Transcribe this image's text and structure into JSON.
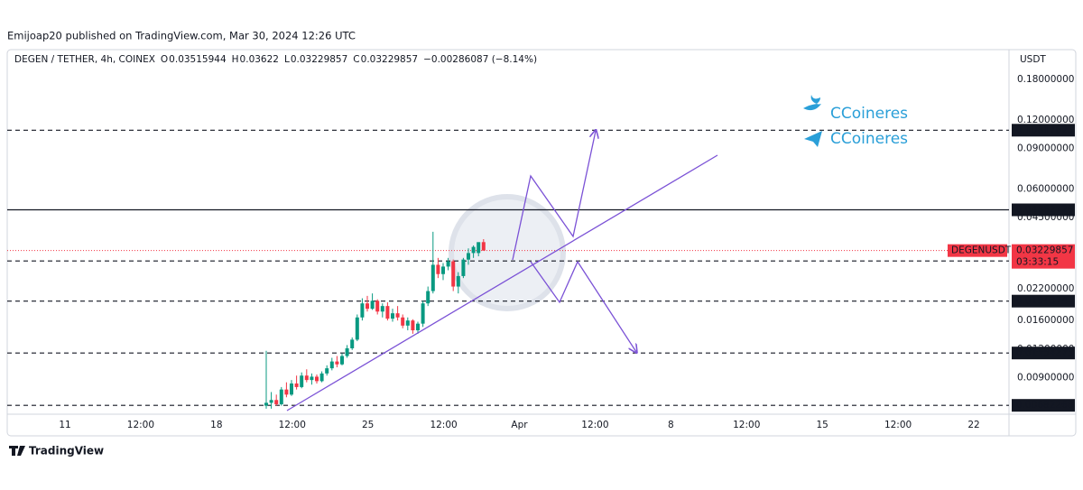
{
  "header": "Emijoap20 published on TradingView.com, Mar 30, 2024 12:26 UTC",
  "footer": "TradingView",
  "watermarks": [
    "CCoineres",
    "CCoineres"
  ],
  "chart_data": {
    "type": "candlestick",
    "title": "DEGEN / TETHER, 4h, COINEX",
    "ohlc_legend": [
      {
        "label": "O",
        "value": 0.03515944
      },
      {
        "label": "H",
        "value": 0.03622
      },
      {
        "label": "L",
        "value": 0.03229857
      },
      {
        "label": "C",
        "value": 0.03229857
      }
    ],
    "change": "−0.00286087 (−8.14%)",
    "currency": "USDT",
    "up_color": "#089981",
    "down_color": "#f23645",
    "log_scale": true,
    "open": [
      0.0068,
      0.007,
      0.0072,
      0.0069,
      0.008,
      0.0076,
      0.0085,
      0.0082,
      0.0092,
      0.0088,
      0.0091,
      0.0087,
      0.0094,
      0.0099,
      0.0106,
      0.0103,
      0.0112,
      0.0121,
      0.0132,
      0.0165,
      0.019,
      0.018,
      0.0195,
      0.0175,
      0.0185,
      0.0163,
      0.0172,
      0.0165,
      0.0152,
      0.016,
      0.0145,
      0.0155,
      0.019,
      0.0215,
      0.028,
      0.0255,
      0.0275,
      0.029,
      0.0225,
      0.025,
      0.0295,
      0.0315,
      0.0315,
      0.03515944
    ],
    "high": [
      0.0118,
      0.0078,
      0.0076,
      0.0082,
      0.0086,
      0.0088,
      0.0092,
      0.0095,
      0.0098,
      0.0094,
      0.0093,
      0.0096,
      0.0102,
      0.011,
      0.0112,
      0.0115,
      0.0125,
      0.0135,
      0.017,
      0.02,
      0.0205,
      0.021,
      0.0198,
      0.019,
      0.0192,
      0.018,
      0.0185,
      0.017,
      0.0165,
      0.0162,
      0.0158,
      0.0195,
      0.0225,
      0.039,
      0.03,
      0.0285,
      0.03,
      0.0295,
      0.026,
      0.03,
      0.033,
      0.034,
      0.0345,
      0.03622
    ],
    "low": [
      0.0066,
      0.0066,
      0.0068,
      0.0068,
      0.0074,
      0.0075,
      0.008,
      0.0081,
      0.0086,
      0.0084,
      0.0085,
      0.0086,
      0.0092,
      0.0097,
      0.01,
      0.0102,
      0.011,
      0.0119,
      0.013,
      0.016,
      0.0175,
      0.0178,
      0.017,
      0.0165,
      0.016,
      0.0158,
      0.016,
      0.0148,
      0.0145,
      0.014,
      0.014,
      0.015,
      0.0185,
      0.021,
      0.0245,
      0.024,
      0.0265,
      0.0215,
      0.021,
      0.0245,
      0.028,
      0.03,
      0.0305,
      0.03229857
    ],
    "close": [
      0.007,
      0.0072,
      0.0069,
      0.008,
      0.0076,
      0.0085,
      0.0082,
      0.0092,
      0.0088,
      0.0091,
      0.0087,
      0.0094,
      0.0099,
      0.0106,
      0.0103,
      0.0112,
      0.0121,
      0.0132,
      0.0165,
      0.019,
      0.018,
      0.0195,
      0.0175,
      0.0185,
      0.0163,
      0.0172,
      0.0165,
      0.0152,
      0.016,
      0.0145,
      0.0155,
      0.019,
      0.0215,
      0.028,
      0.0255,
      0.0275,
      0.029,
      0.0225,
      0.025,
      0.0295,
      0.0315,
      0.0335,
      0.03515944,
      0.03229857
    ],
    "ylim": [
      0.0063,
      0.243
    ],
    "yticks": [
      {
        "value": 0.18,
        "label": "0.18000000"
      },
      {
        "value": 0.12,
        "label": "0.12000000"
      },
      {
        "value": 0.09,
        "label": "0.09000000"
      },
      {
        "value": 0.06,
        "label": "0.06000000"
      },
      {
        "value": 0.045,
        "label": "0.04500000"
      },
      {
        "value": 0.022,
        "label": "0.02200000"
      },
      {
        "value": 0.016,
        "label": "0.01600000"
      },
      {
        "value": 0.012,
        "label": "0.01200000"
      },
      {
        "value": 0.009,
        "label": "0.00900000"
      }
    ],
    "time_labels": [
      "11",
      "12:00",
      "18",
      "12:00",
      "25",
      "12:00",
      "Apr",
      "12:00",
      "8",
      "12:00",
      "15",
      "12:00",
      "22"
    ],
    "levels": [
      {
        "value": 0.10817623,
        "style": "dashed"
      },
      {
        "value": 0.04862726,
        "style": "solid"
      },
      {
        "value": 0.02909439,
        "style": "dashed"
      },
      {
        "value": 0.0194374,
        "style": "dashed"
      },
      {
        "value": 0.01154273,
        "style": "dashed"
      },
      {
        "value": 0.00682268,
        "style": "dashed"
      }
    ],
    "last_price": {
      "symbol": "DEGENUSDT",
      "value": 0.03229857,
      "countdown": "03:33:15",
      "color": "#f23645"
    }
  }
}
